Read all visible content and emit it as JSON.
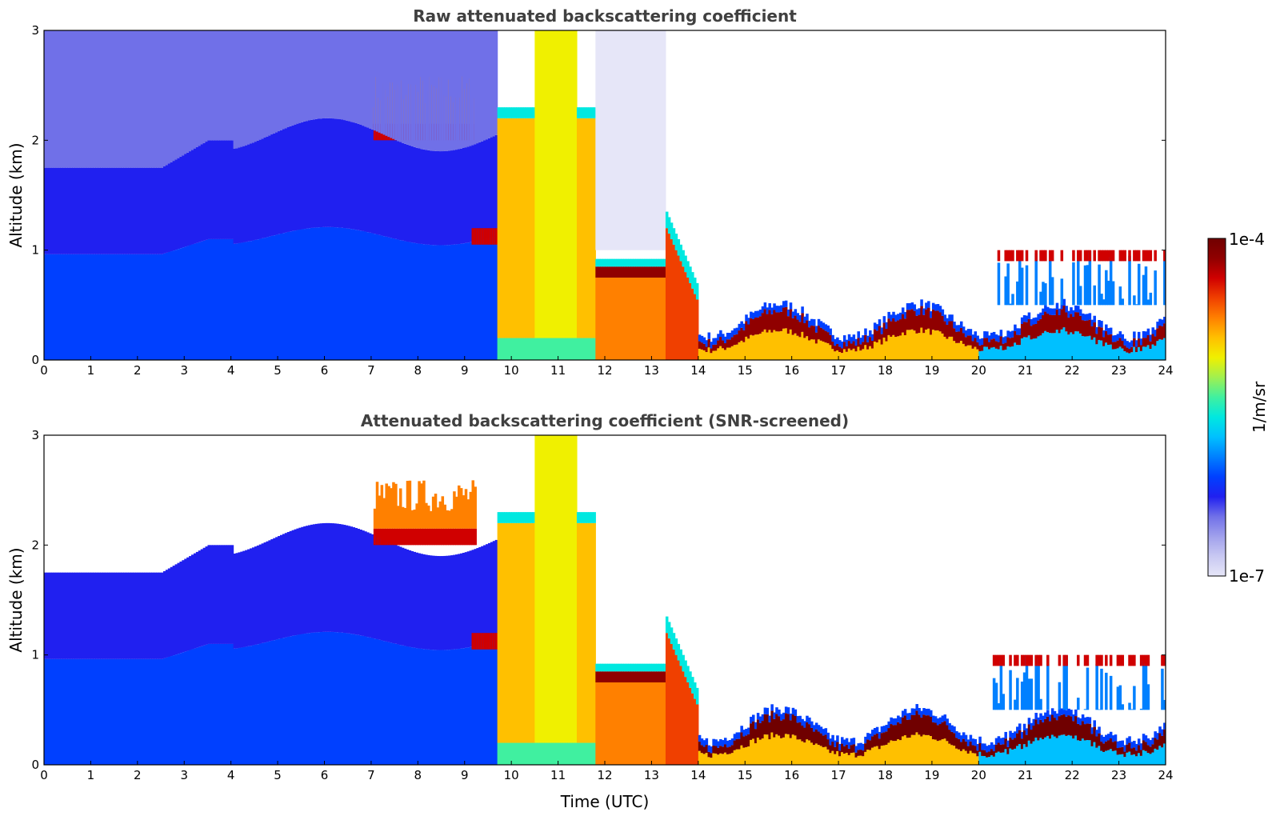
{
  "chart_data": [
    {
      "type": "heatmap",
      "title": "Raw attenuated backscattering coefficient",
      "xlabel": "",
      "ylabel": "Altitude (km)",
      "xlim": [
        0,
        24
      ],
      "ylim": [
        0,
        3
      ],
      "x_ticks": [
        "0",
        "1",
        "2",
        "3",
        "4",
        "5",
        "6",
        "7",
        "8",
        "9",
        "10",
        "11",
        "12",
        "13",
        "14",
        "15",
        "16",
        "17",
        "18",
        "19",
        "20",
        "21",
        "22",
        "23",
        "24"
      ],
      "y_ticks": [
        "0",
        "1",
        "2",
        "3"
      ]
    },
    {
      "type": "heatmap",
      "title": "Attenuated backscattering coefficient (SNR-screened)",
      "xlabel": "Time (UTC)",
      "ylabel": "Altitude (km)",
      "xlim": [
        0,
        24
      ],
      "ylim": [
        0,
        3
      ],
      "x_ticks": [
        "0",
        "1",
        "2",
        "3",
        "4",
        "5",
        "6",
        "7",
        "8",
        "9",
        "10",
        "11",
        "12",
        "13",
        "14",
        "15",
        "16",
        "17",
        "18",
        "19",
        "20",
        "21",
        "22",
        "23",
        "24"
      ],
      "y_ticks": [
        "0",
        "1",
        "2",
        "3"
      ]
    }
  ],
  "colorbar": {
    "label": "1/m/sr",
    "max_label": "1e-4",
    "min_label": "1e-7",
    "colors": [
      "#e6e6f8",
      "#c8c8f2",
      "#a0a0ec",
      "#7070e8",
      "#2020f0",
      "#0040ff",
      "#0080ff",
      "#00c0ff",
      "#00e8e0",
      "#40f0a0",
      "#a0f050",
      "#f0f000",
      "#ffc000",
      "#ff8000",
      "#f04000",
      "#d00000",
      "#900000",
      "#700000"
    ]
  }
}
